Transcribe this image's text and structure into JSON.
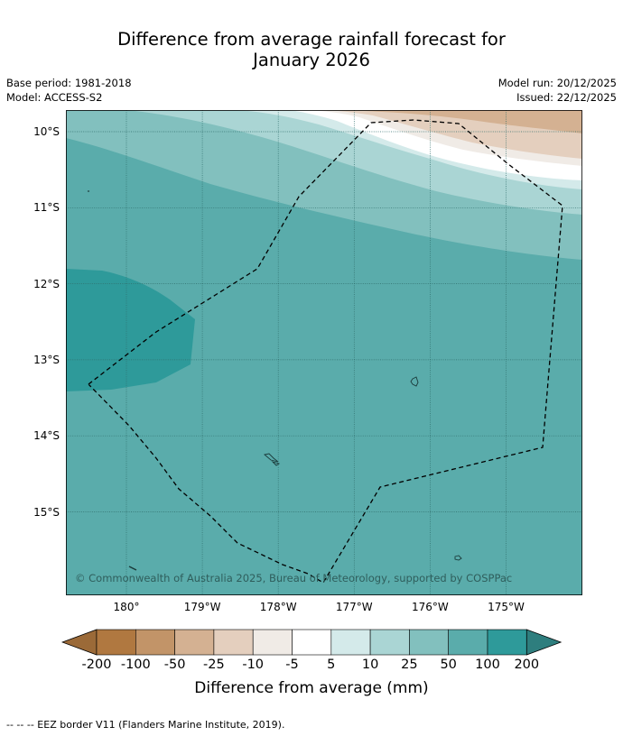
{
  "title": {
    "line1": "Difference from average rainfall forecast for",
    "line2": "January 2026"
  },
  "meta_left": {
    "base_period": "Base period: 1981-2018",
    "model": "Model: ACCESS-S2"
  },
  "meta_right": {
    "model_run": "Model run: 20/12/2025",
    "issued": "Issued: 22/12/2025"
  },
  "map": {
    "copyright": "© Commonwealth of Australia 2025, Bureau of Meteorology, supported by COSPPac",
    "lat_labels": [
      "10°S",
      "11°S",
      "12°S",
      "13°S",
      "14°S",
      "15°S"
    ],
    "lon_labels": [
      "180°",
      "179°W",
      "178°W",
      "177°W",
      "176°W",
      "175°W"
    ],
    "lat_values": [
      -10,
      -11,
      -12,
      -13,
      -14,
      -15
    ],
    "lon_values": [
      180,
      -179,
      -178,
      -177,
      -176,
      -175
    ],
    "eez_border": "dashed",
    "colors": {
      "deep_teal": "#2e9a9a",
      "teal": "#5aacab",
      "light_teal": "#82c0be",
      "pale_teal": "#aad5d4",
      "very_pale_teal": "#d4eaea",
      "white": "#ffffff",
      "light_tan": "#f0ebe6",
      "tan": "#e4cfbe",
      "brown": "#d4b192"
    }
  },
  "colorbar": {
    "label": "Difference from average (mm)",
    "ticks": [
      "-200",
      "-100",
      "-50",
      "-25",
      "-10",
      "-5",
      "5",
      "10",
      "25",
      "50",
      "100",
      "200"
    ],
    "colors": [
      "#b07840",
      "#c29468",
      "#d4b192",
      "#e4cfbe",
      "#f0ebe6",
      "#ffffff",
      "#d4eaea",
      "#aad5d4",
      "#82c0be",
      "#5aacab",
      "#2e9a9a"
    ],
    "under_color": "#9b6a38",
    "over_color": "#2e7e7e"
  },
  "footnote": "--  --  -- EEZ border V11 (Flanders Marine Institute, 2019)."
}
